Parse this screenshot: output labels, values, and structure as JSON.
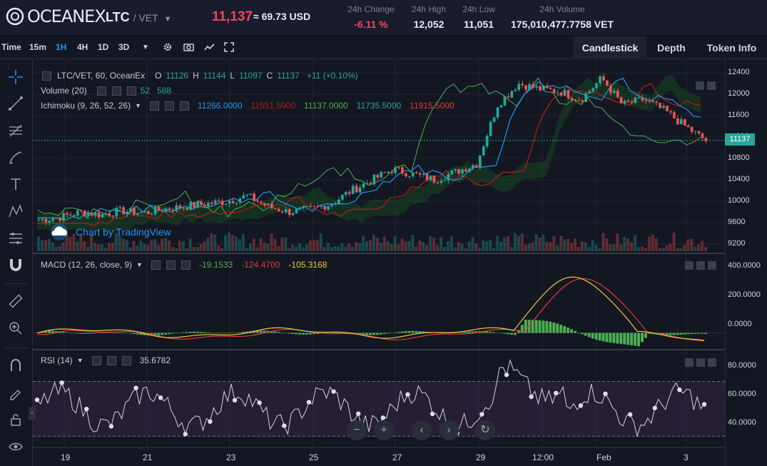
{
  "header": {
    "logo_text": "OCEANEX",
    "pair_base": "LTC",
    "pair_quote": "/ VET",
    "last_price": "11,137",
    "usd_price": "≈ 69.73 USD",
    "stats": [
      {
        "label": "24h Change",
        "value": "-6.11 %"
      },
      {
        "label": "24h High",
        "value": "12,052"
      },
      {
        "label": "24h Low",
        "value": "11,051"
      },
      {
        "label": "24h Volume",
        "value": "175,010,477.7758 VET"
      }
    ]
  },
  "toolbar": {
    "intervals": [
      "Time",
      "15m",
      "1H",
      "4H",
      "1D",
      "3D"
    ],
    "active_interval": "1H",
    "tabs": [
      "Candlestick",
      "Depth",
      "Token Info"
    ],
    "active_tab": "Candlestick"
  },
  "main_legend": {
    "symbol": "LTC/VET, 60, OceanEx",
    "o_label": "O",
    "o": "11126",
    "h_label": "H",
    "h": "11144",
    "l_label": "L",
    "l": "11097",
    "c_label": "C",
    "c": "11137",
    "change": "+11 (+0.10%)"
  },
  "volume_legend": {
    "name": "Volume (20)",
    "v1": "52",
    "v2": "588"
  },
  "ichimoku_legend": {
    "name": "Ichimoku (9, 26, 52, 26)",
    "values": [
      "11266.0000",
      "11551.5000",
      "11137.0000",
      "11735.5000",
      "11915.5000"
    ],
    "colors": [
      "#2196f3",
      "#b71c1c",
      "#4caf50",
      "#26a69a",
      "#e53935"
    ]
  },
  "macd_legend": {
    "name": "MACD (12, 26, close, 9)",
    "values": [
      "-19.1533",
      "-124.4700",
      "-105.3168"
    ]
  },
  "rsi_legend": {
    "name": "RSI (14)",
    "value": "35.6782"
  },
  "watermark": "Chart by TradingView",
  "price_axis": [
    "12400",
    "12000",
    "11600",
    "11200",
    "10800",
    "10400",
    "10000",
    "9600",
    "9200"
  ],
  "current_price_tag": "11137",
  "macd_axis": [
    "400.0000",
    "200.0000",
    "0.0000"
  ],
  "rsi_axis": [
    "80.0000",
    "60.0000",
    "40.0000"
  ],
  "time_axis": [
    "19",
    "21",
    "23",
    "25",
    "27",
    "29",
    "12:00",
    "Feb",
    "3"
  ],
  "colors": {
    "up": "#26a69a",
    "down": "#ef5350",
    "accent": "#2196f3",
    "negative": "#f4445f"
  },
  "chart_data": {
    "type": "candlestick",
    "price_ylim": [
      9200,
      12400
    ],
    "close_series": [
      9650,
      9700,
      9800,
      9750,
      9820,
      9780,
      9850,
      9900,
      9950,
      10000,
      10100,
      9900,
      9800,
      9850,
      9950,
      10200,
      10400,
      10600,
      10500,
      10400,
      10550,
      10700,
      11800,
      12200,
      12100,
      12050,
      11900,
      12300,
      11800,
      11900,
      11700,
      11400,
      11137
    ],
    "macd_ylim": [
      -100,
      450
    ],
    "rsi_ylim": [
      25,
      90
    ]
  }
}
